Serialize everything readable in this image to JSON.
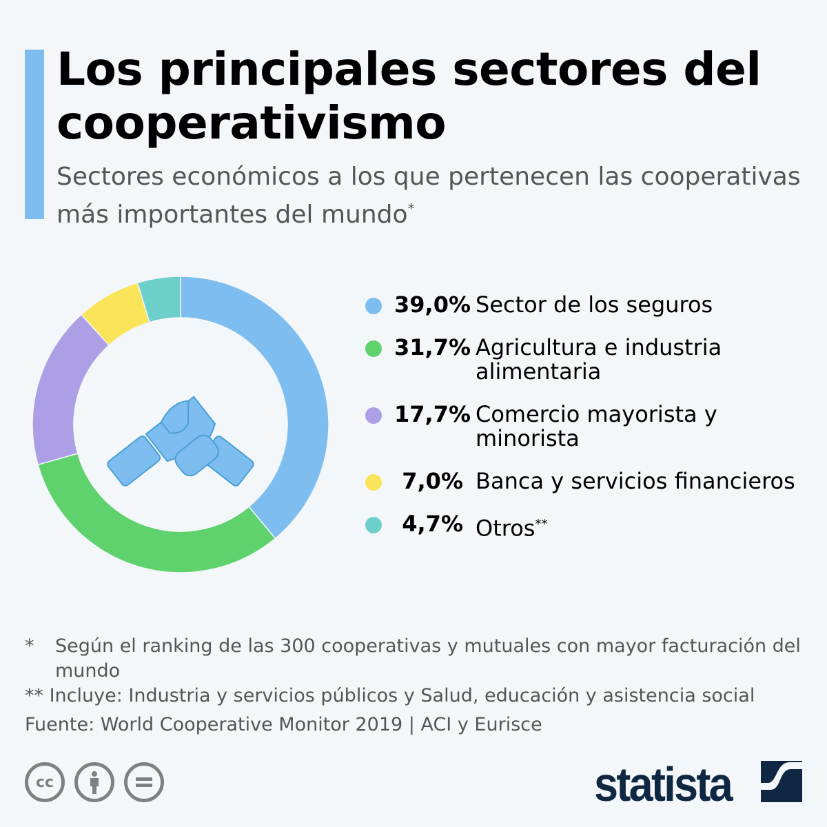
{
  "title": "Los principales sectores del cooperativismo",
  "subtitle": "Sectores económicos a los que pertenecen las cooperativas más importantes del mundo",
  "subtitle_mark": "*",
  "chart_data": {
    "type": "pie",
    "donut": true,
    "start": "top, clockwise",
    "center_icon": "handshake-icon",
    "legend_position": "right",
    "slices": [
      {
        "label": "Sector de los seguros",
        "pct_label": "39,0%",
        "value": 39.0,
        "color": "#7dbdf0"
      },
      {
        "label": "Agricultura e industria alimentaria",
        "pct_label": "31,7%",
        "value": 31.7,
        "color": "#5fd26e"
      },
      {
        "label": "Comercio mayorista y minorista",
        "pct_label": "17,7%",
        "value": 17.7,
        "color": "#ac9fe6"
      },
      {
        "label": "Banca y servicios financieros",
        "pct_label": "7,0%",
        "value": 7.0,
        "color": "#f9e45a"
      },
      {
        "label": "Otros",
        "label_mark": "**",
        "pct_label": "4,7%",
        "value": 4.7,
        "color": "#6dcfca"
      }
    ]
  },
  "notes": {
    "n1_mark": "*",
    "n1": "Según el ranking de las 300 cooperativas y mutuales con mayor facturación del mundo",
    "n2": "** Incluye: Industria y servicios públicos y Salud, educación y asistencia social",
    "source": "Fuente: World Cooperative Monitor 2019 | ACI y Eurisce"
  },
  "footer": {
    "cc": "cc",
    "logo": "statista",
    "license_icons": [
      "cc-icon",
      "by-icon",
      "nd-icon"
    ]
  }
}
